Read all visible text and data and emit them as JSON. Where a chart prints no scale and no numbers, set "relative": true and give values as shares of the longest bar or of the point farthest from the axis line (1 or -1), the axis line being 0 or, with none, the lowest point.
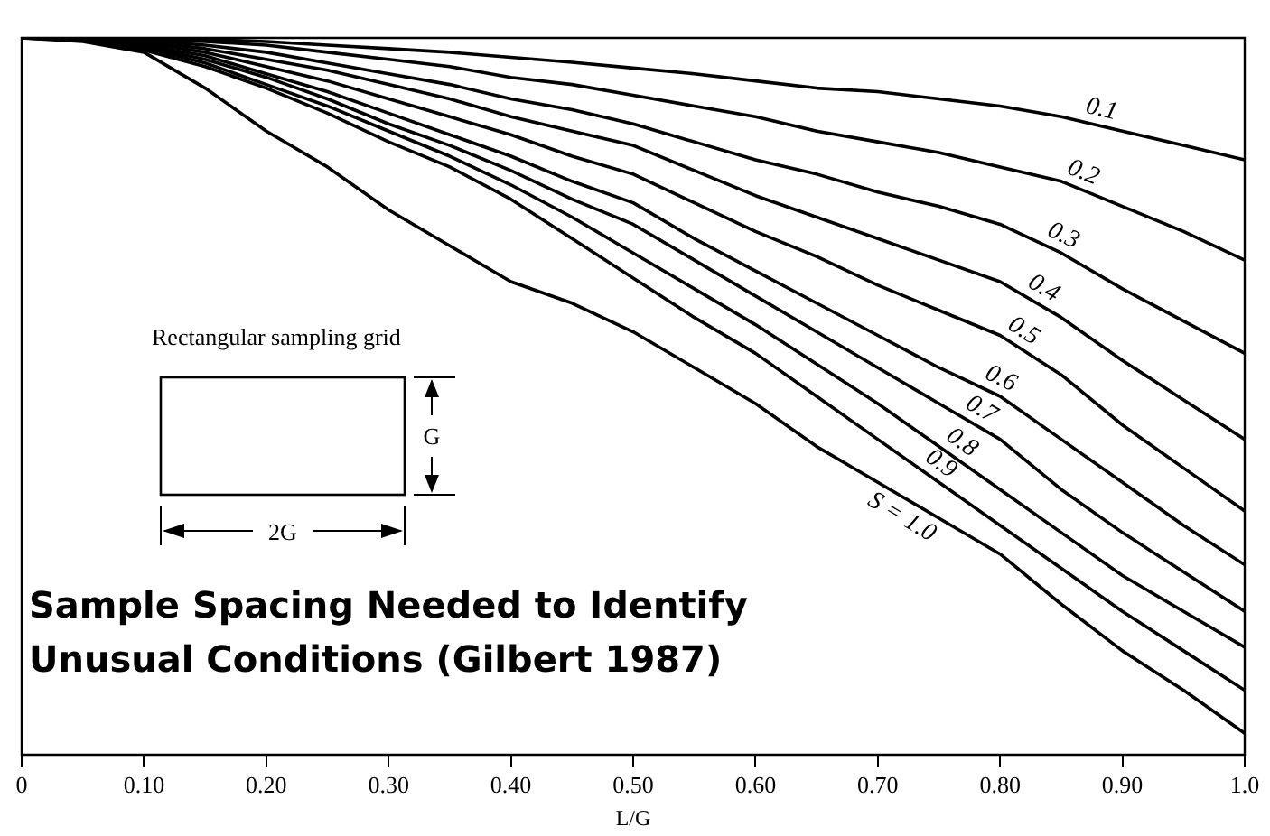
{
  "chart_data": {
    "type": "line",
    "title": "Sample Spacing Needed to Identify Unusual Conditions (Gilbert 1987)",
    "xlabel": "L/G",
    "relative": true,
    "x": [
      0,
      0.05,
      0.1,
      0.15,
      0.2,
      0.25,
      0.3,
      0.35,
      0.4,
      0.45,
      0.5,
      0.55,
      0.6,
      0.65,
      0.7,
      0.75,
      0.8,
      0.85,
      0.9,
      0.95,
      1.0
    ],
    "xlim": [
      0,
      1
    ],
    "xticks": [
      {
        "value": 0,
        "label": "0"
      },
      {
        "value": 0.1,
        "label": "0.10"
      },
      {
        "value": 0.2,
        "label": "0.20"
      },
      {
        "value": 0.3,
        "label": "0.30"
      },
      {
        "value": 0.4,
        "label": "0.40"
      },
      {
        "value": 0.5,
        "label": "0.50"
      },
      {
        "value": 0.6,
        "label": "0.60"
      },
      {
        "value": 0.7,
        "label": "0.70"
      },
      {
        "value": 0.8,
        "label": "0.80"
      },
      {
        "value": 0.9,
        "label": "0.90"
      },
      {
        "value": 1.0,
        "label": "1.0"
      }
    ],
    "series": [
      {
        "name": "0.1",
        "color": "#000000",
        "values": [
          1,
          1,
          1,
          0.998,
          0.995,
          0.99,
          0.985,
          0.98,
          0.973,
          0.966,
          0.958,
          0.95,
          0.94,
          0.93,
          0.925,
          0.915,
          0.905,
          0.89,
          0.87,
          0.85,
          0.83
        ]
      },
      {
        "name": "0.2",
        "color": "#000000",
        "values": [
          1,
          1,
          0.998,
          0.995,
          0.99,
          0.98,
          0.97,
          0.96,
          0.945,
          0.935,
          0.92,
          0.905,
          0.89,
          0.87,
          0.855,
          0.84,
          0.82,
          0.8,
          0.765,
          0.73,
          0.69
        ]
      },
      {
        "name": "0.3",
        "color": "#000000",
        "values": [
          1,
          1,
          0.997,
          0.99,
          0.98,
          0.965,
          0.95,
          0.935,
          0.915,
          0.9,
          0.88,
          0.855,
          0.83,
          0.81,
          0.785,
          0.765,
          0.74,
          0.7,
          0.65,
          0.605,
          0.56
        ]
      },
      {
        "name": "0.4",
        "color": "#000000",
        "values": [
          1,
          1,
          0.995,
          0.985,
          0.97,
          0.955,
          0.935,
          0.915,
          0.89,
          0.87,
          0.85,
          0.815,
          0.78,
          0.75,
          0.72,
          0.69,
          0.66,
          0.61,
          0.55,
          0.495,
          0.44
        ]
      },
      {
        "name": "0.5",
        "color": "#000000",
        "values": [
          1,
          1,
          0.993,
          0.98,
          0.96,
          0.94,
          0.915,
          0.89,
          0.865,
          0.835,
          0.81,
          0.77,
          0.73,
          0.695,
          0.655,
          0.62,
          0.585,
          0.53,
          0.46,
          0.4,
          0.34
        ]
      },
      {
        "name": "0.6",
        "color": "#000000",
        "values": [
          1,
          1,
          0.99,
          0.975,
          0.95,
          0.925,
          0.895,
          0.865,
          0.835,
          0.8,
          0.77,
          0.72,
          0.675,
          0.63,
          0.585,
          0.54,
          0.5,
          0.44,
          0.38,
          0.32,
          0.265
        ]
      },
      {
        "name": "0.7",
        "color": "#000000",
        "values": [
          1,
          1,
          0.988,
          0.97,
          0.945,
          0.915,
          0.88,
          0.85,
          0.815,
          0.775,
          0.74,
          0.69,
          0.64,
          0.59,
          0.54,
          0.49,
          0.44,
          0.37,
          0.31,
          0.255,
          0.2
        ]
      },
      {
        "name": "0.8",
        "color": "#000000",
        "values": [
          1,
          0.998,
          0.986,
          0.965,
          0.935,
          0.905,
          0.87,
          0.835,
          0.795,
          0.75,
          0.7,
          0.65,
          0.6,
          0.545,
          0.49,
          0.43,
          0.37,
          0.31,
          0.25,
          0.2,
          0.15
        ]
      },
      {
        "name": "0.9",
        "color": "#000000",
        "values": [
          1,
          0.997,
          0.983,
          0.96,
          0.93,
          0.895,
          0.855,
          0.82,
          0.775,
          0.72,
          0.665,
          0.61,
          0.56,
          0.5,
          0.44,
          0.38,
          0.32,
          0.26,
          0.2,
          0.145,
          0.09
        ]
      },
      {
        "name": "S = 1.0",
        "color": "#000000",
        "values": [
          1,
          0.995,
          0.98,
          0.93,
          0.87,
          0.82,
          0.76,
          0.71,
          0.66,
          0.63,
          0.59,
          0.54,
          0.49,
          0.43,
          0.38,
          0.33,
          0.28,
          0.21,
          0.145,
          0.09,
          0.03
        ]
      }
    ],
    "annotations": [
      "Rectangular sampling grid",
      "G",
      "2G"
    ],
    "legend": false,
    "grid": false,
    "marker": "none",
    "line_style": "solid"
  }
}
